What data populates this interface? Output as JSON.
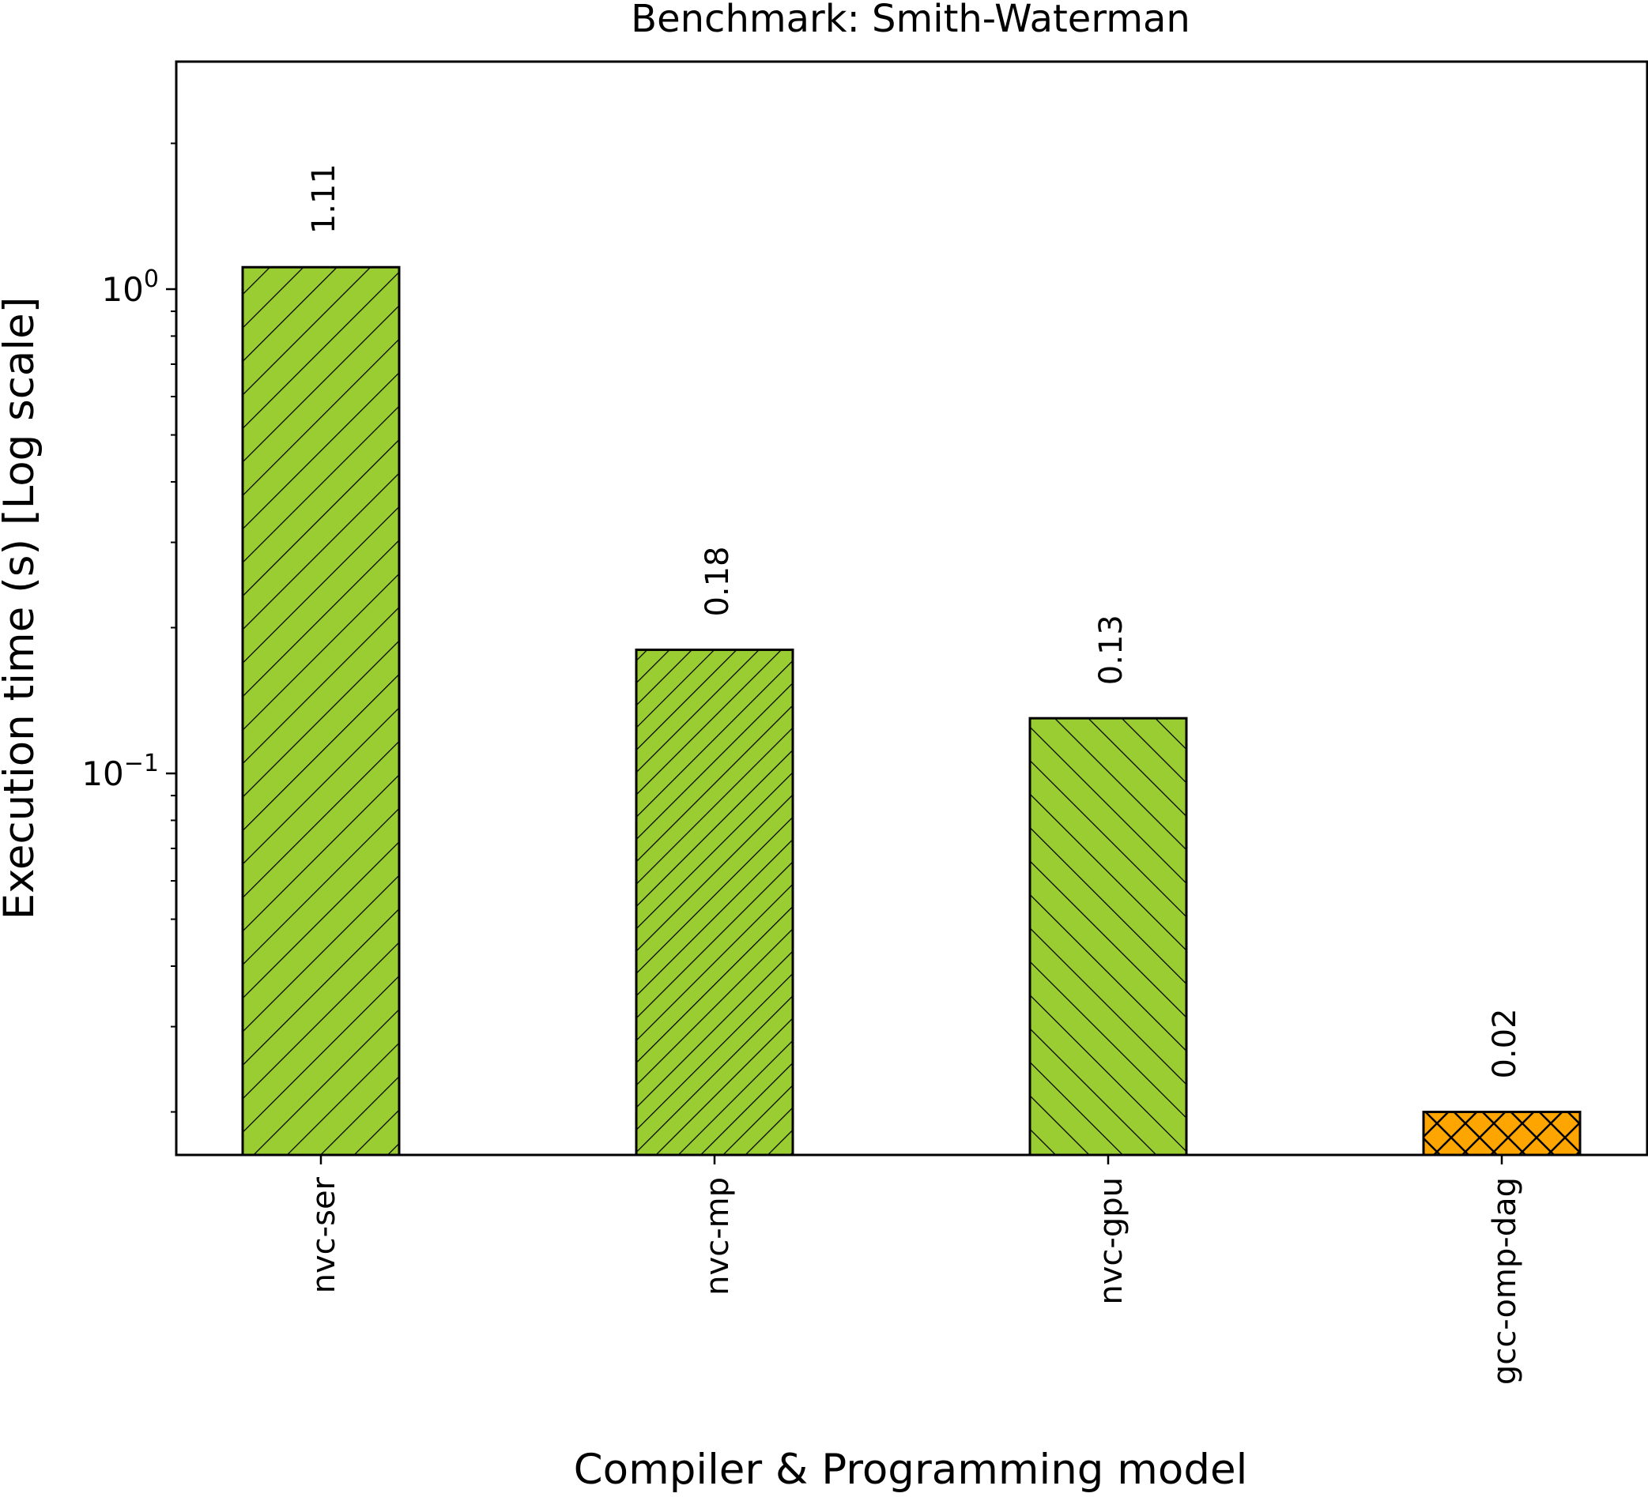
{
  "chart_data": {
    "type": "bar",
    "title": "Benchmark: Smith-Waterman",
    "xlabel": "Compiler & Programming model",
    "ylabel": "Execution time (s) [Log scale]",
    "yscale": "log",
    "ylim": [
      0.0163,
      2.95
    ],
    "categories": [
      "nvc-ser",
      "nvc-mp",
      "nvc-gpu",
      "gcc-omp-dag"
    ],
    "values": [
      1.11,
      0.18,
      0.13,
      0.02
    ],
    "value_labels": [
      "1.11",
      "0.18",
      "0.13",
      "0.02"
    ],
    "bar_colors": [
      "#9acd32",
      "#9acd32",
      "#9acd32",
      "#ffa500"
    ],
    "bar_hatches": [
      "forward-diagonal",
      "forward-diagonal-dense",
      "back-diagonal",
      "cross"
    ],
    "yticks": [
      {
        "value": 1,
        "base": "10",
        "exp": "0"
      },
      {
        "value": 0.1,
        "base": "10",
        "exp": "−1"
      }
    ],
    "grid": false,
    "legend": "none"
  }
}
